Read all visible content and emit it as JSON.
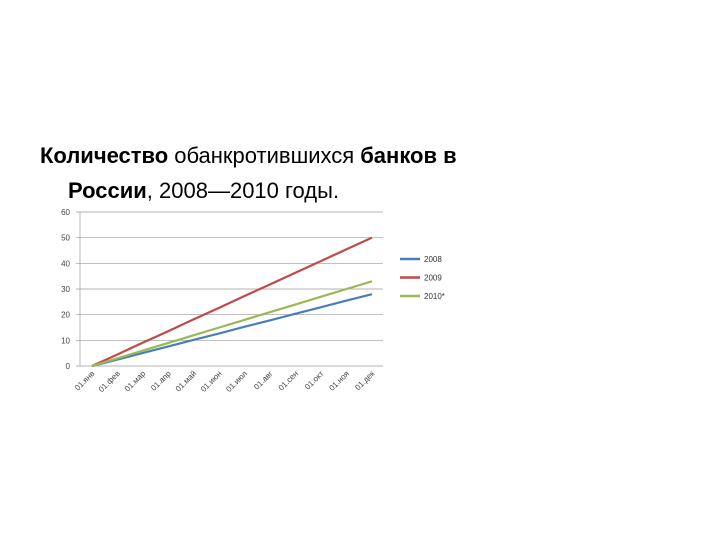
{
  "chart_data": {
    "type": "line",
    "title_lines": [
      [
        {
          "text": "Количество",
          "bold": true
        },
        {
          "text": "обанкротившихся",
          "bold": false
        },
        {
          "text": "банков в",
          "bold": true
        }
      ],
      [
        {
          "text": "России",
          "bold": true
        },
        {
          "text": ", 2008—2010 годы.",
          "bold": false
        }
      ]
    ],
    "categories": [
      "01.янв",
      "01.фев",
      "01.мар",
      "01.апр",
      "01.май",
      "01.июн",
      "01.июл",
      "01.авг",
      "01.сен",
      "01.окт",
      "01.ноя",
      "01.дек"
    ],
    "series": [
      {
        "name": "2008",
        "color": "#4a7ebb",
        "values": [
          0,
          2.5,
          5.1,
          7.6,
          10.2,
          12.7,
          15.3,
          17.8,
          20.4,
          22.9,
          25.5,
          28
        ]
      },
      {
        "name": "2009",
        "color": "#be4b48",
        "values": [
          0,
          4.5,
          9.1,
          13.6,
          18.2,
          22.7,
          27.3,
          31.8,
          36.4,
          40.9,
          45.5,
          50
        ]
      },
      {
        "name": "2010*",
        "color": "#98b954",
        "values": [
          0,
          3,
          6,
          9,
          12,
          15,
          18,
          21,
          24,
          27,
          30,
          33
        ]
      }
    ],
    "ylim": [
      0,
      60
    ],
    "yticks": [
      0,
      10,
      20,
      30,
      40,
      50,
      60
    ],
    "grid": true,
    "legend": "right"
  }
}
